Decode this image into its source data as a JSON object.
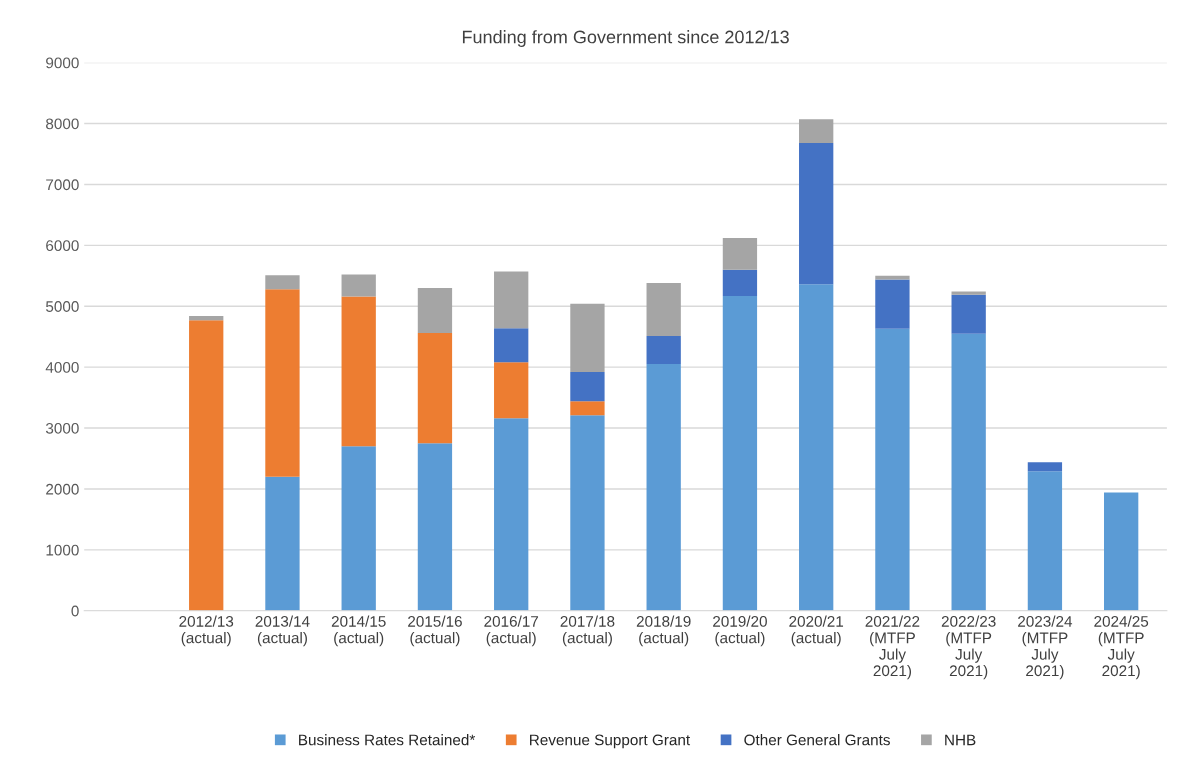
{
  "chart_data": {
    "type": "bar",
    "title": "Funding from Government since 2012/13",
    "stacked": true,
    "categories": [
      null,
      "2012/13\n(actual)",
      "2013/14\n(actual)",
      "2014/15\n(actual)",
      "2015/16\n(actual)",
      "2016/17\n(actual)",
      "2017/18\n(actual)",
      "2018/19\n(actual)",
      "2019/20\n(actual)",
      "2020/21\n(actual)",
      "2021/22\n(MTFP\nJuly\n2021)",
      "2022/23\n(MTFP\nJuly\n2021)",
      "2023/24\n(MTFP\nJuly\n2021)",
      "2024/25\n(MTFP\nJuly\n2021)"
    ],
    "series": [
      {
        "name": "Business Rates Retained*",
        "color": "#5b9bd5",
        "values": [
          0,
          0,
          2200,
          2700,
          2750,
          3160,
          3210,
          4050,
          5170,
          5360,
          4630,
          4550,
          2290,
          1940
        ]
      },
      {
        "name": "Revenue Support Grant",
        "color": "#ed7d31",
        "values": [
          0,
          4770,
          3080,
          2460,
          1810,
          920,
          230,
          0,
          0,
          0,
          0,
          0,
          0,
          0
        ]
      },
      {
        "name": "Other General Grants",
        "color": "#4472c4",
        "values": [
          0,
          0,
          0,
          0,
          0,
          560,
          480,
          460,
          430,
          2320,
          810,
          640,
          150,
          0
        ]
      },
      {
        "name": "NHB",
        "color": "#a5a5a5",
        "values": [
          0,
          70,
          230,
          360,
          740,
          930,
          1120,
          870,
          520,
          390,
          60,
          50,
          0,
          0
        ]
      }
    ],
    "ylim": [
      0,
      9000
    ],
    "yticks": [
      0,
      1000,
      2000,
      3000,
      4000,
      5000,
      6000,
      7000,
      8000,
      9000
    ],
    "grid": "y",
    "legend": "bottom"
  }
}
